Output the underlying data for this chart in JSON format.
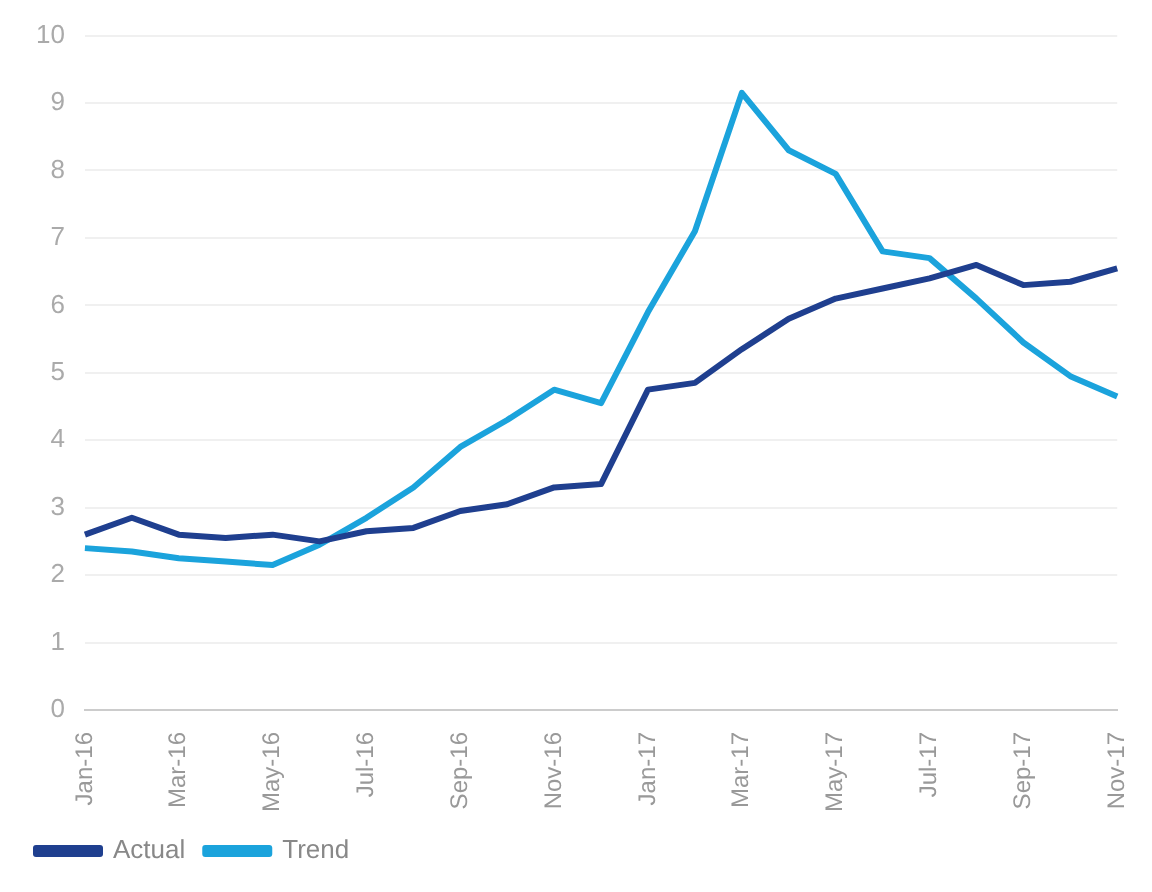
{
  "chart_data": {
    "type": "line",
    "categories": [
      "Jan-16",
      null,
      "Mar-16",
      null,
      "May-16",
      null,
      "Jul-16",
      null,
      "Sep-16",
      null,
      "Nov-16",
      null,
      "Jan-17",
      null,
      "Mar-17",
      null,
      "May-17",
      null,
      "Jul-17",
      null,
      "Sep-17",
      null,
      "Nov-17"
    ],
    "series": [
      {
        "name": "Actual",
        "color": "#1f3f8f",
        "values": [
          2.6,
          2.85,
          2.6,
          2.55,
          2.6,
          2.5,
          2.65,
          2.7,
          2.95,
          3.05,
          3.3,
          3.35,
          4.75,
          4.85,
          5.35,
          5.8,
          6.1,
          6.25,
          6.4,
          6.6,
          6.3,
          6.35,
          6.55
        ]
      },
      {
        "name": "Trend",
        "color": "#1ba3dc",
        "values": [
          2.4,
          2.35,
          2.25,
          2.2,
          2.15,
          2.45,
          2.85,
          3.3,
          3.9,
          4.3,
          4.75,
          4.55,
          5.9,
          7.1,
          9.15,
          8.3,
          7.95,
          6.8,
          6.7,
          6.1,
          5.45,
          4.95,
          4.65
        ]
      }
    ],
    "ylim": [
      0,
      10
    ],
    "yticks": [
      0,
      1,
      2,
      3,
      4,
      5,
      6,
      7,
      8,
      9,
      10
    ],
    "grid": "y",
    "legend": "bottom left",
    "marker": "none",
    "line_style": "solid"
  }
}
